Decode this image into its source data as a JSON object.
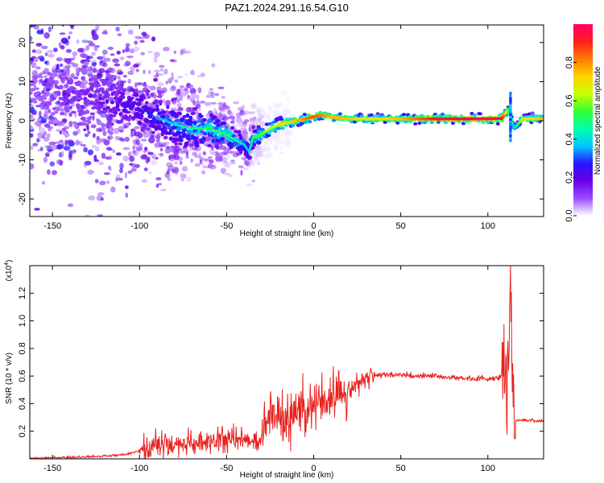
{
  "title": "PAZ1.2024.291.16.54.G10",
  "chart_data": [
    {
      "type": "heatmap",
      "xlabel": "Height of straight line (km)",
      "ylabel": "Frequency (Hz)",
      "xlim": [
        -163,
        132
      ],
      "ylim": [
        -24.5,
        24.5
      ],
      "x_ticks": [
        "-150",
        "-100",
        "-50",
        "0",
        "50",
        "100"
      ],
      "x_tick_values": [
        -150,
        -100,
        -50,
        0,
        50,
        100
      ],
      "y_ticks": [
        "20",
        "10",
        "0",
        "-10",
        "-20"
      ],
      "y_tick_values": [
        20,
        10,
        0,
        -10,
        -20
      ],
      "colorbar": {
        "label": "Normalized spectral amplitude",
        "range": [
          0,
          1
        ],
        "ticks": [
          "0.0",
          "0.2",
          "0.4",
          "0.6",
          "0.8"
        ],
        "tick_values": [
          0.0,
          0.2,
          0.4,
          0.6,
          0.8
        ],
        "colors": [
          "#ffffff",
          "#9a4cff",
          "#6a00e6",
          "#2a14ff",
          "#00c8ff",
          "#00ffaa",
          "#33ff33",
          "#c8ff00",
          "#ffd200",
          "#ff7a00",
          "#ff1e1e",
          "#ff0066"
        ]
      },
      "ridge": {
        "x": [
          -163,
          -150,
          -140,
          -130,
          -120,
          -110,
          -100,
          -90,
          -80,
          -70,
          -60,
          -50,
          -45,
          -40,
          -37,
          -35,
          -30,
          -25,
          -20,
          -10,
          0,
          5,
          10,
          20,
          30,
          50,
          70,
          90,
          100,
          108,
          112,
          115,
          120,
          132
        ],
        "freq": [
          8,
          7,
          6.5,
          6,
          5,
          4,
          3,
          1,
          -1,
          -2,
          -2,
          -3.5,
          -5,
          -6,
          -8,
          -4.5,
          -3.5,
          -2,
          -1,
          0,
          1,
          1.5,
          1,
          0.5,
          0.5,
          0.5,
          0.5,
          0.5,
          0.5,
          0.6,
          3,
          -2,
          0.5,
          0.5
        ],
        "amplitude": [
          0.1,
          0.12,
          0.14,
          0.16,
          0.18,
          0.22,
          0.26,
          0.3,
          0.35,
          0.4,
          0.45,
          0.45,
          0.4,
          0.35,
          0.35,
          0.45,
          0.5,
          0.55,
          0.6,
          0.65,
          0.75,
          0.7,
          0.65,
          0.65,
          0.6,
          0.65,
          0.8,
          0.85,
          0.8,
          0.85,
          0.45,
          0.3,
          0.6,
          0.65
        ]
      },
      "grid": false
    },
    {
      "type": "line",
      "xlabel": "Height of straight line (km)",
      "ylabel": "SNR (10 * v/v)",
      "y_multiplier": "(x10",
      "y_multiplier_exp": "4",
      "xlim": [
        -163,
        132
      ],
      "ylim": [
        0,
        1.4
      ],
      "x_ticks": [
        "-150",
        "-100",
        "-50",
        "0",
        "50",
        "100"
      ],
      "x_tick_values": [
        -150,
        -100,
        -50,
        0,
        50,
        100
      ],
      "y_ticks": [
        "0.2",
        "0.4",
        "0.6",
        "0.8",
        "1.0",
        "1.2"
      ],
      "y_tick_values": [
        0.2,
        0.4,
        0.6,
        0.8,
        1.0,
        1.2
      ],
      "color": "#e8221e",
      "series": [
        {
          "x": [
            -163,
            -150,
            -140,
            -130,
            -120,
            -110,
            -105,
            -100,
            -95,
            -90,
            -85,
            -80,
            -75,
            -70,
            -65,
            -60,
            -55,
            -50,
            -45,
            -40,
            -35,
            -30,
            -28,
            -25,
            -22,
            -20,
            -15,
            -10,
            -5,
            0,
            5,
            10,
            15,
            20,
            25,
            30,
            35,
            40,
            50,
            60,
            70,
            80,
            90,
            100,
            105,
            108,
            110,
            111,
            112,
            113,
            114,
            115,
            120,
            125,
            132
          ],
          "y": [
            0.005,
            0.008,
            0.01,
            0.015,
            0.02,
            0.03,
            0.04,
            0.06,
            0.08,
            0.1,
            0.11,
            0.1,
            0.1,
            0.11,
            0.12,
            0.12,
            0.13,
            0.14,
            0.15,
            0.15,
            0.12,
            0.1,
            0.25,
            0.3,
            0.32,
            0.3,
            0.28,
            0.35,
            0.38,
            0.4,
            0.42,
            0.45,
            0.48,
            0.5,
            0.55,
            0.58,
            0.6,
            0.61,
            0.61,
            0.6,
            0.6,
            0.59,
            0.58,
            0.58,
            0.59,
            0.6,
            0.6,
            0.6,
            0.7,
            1.38,
            0.6,
            0.28,
            0.28,
            0.28,
            0.27
          ]
        }
      ],
      "grid": false
    }
  ]
}
